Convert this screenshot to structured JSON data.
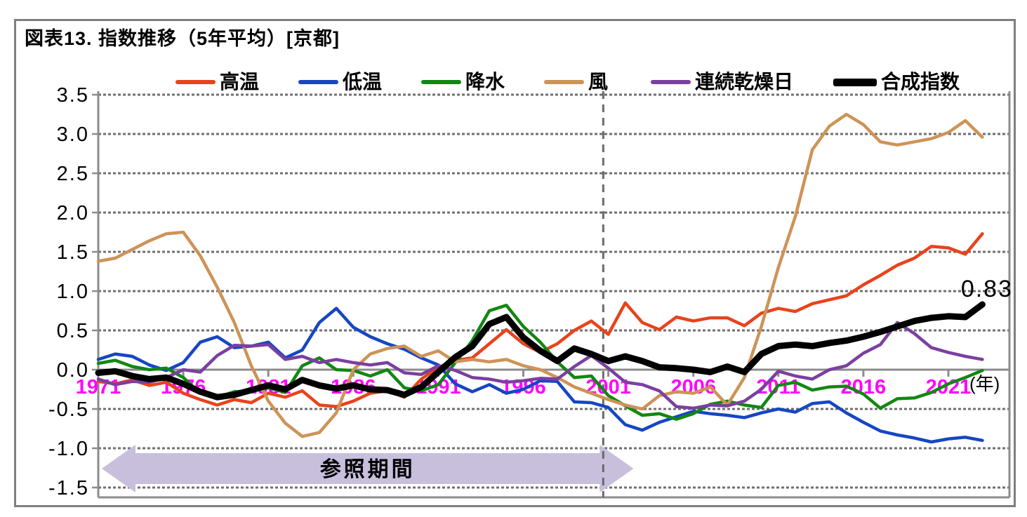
{
  "title": "図表13. 指数推移（5年平均）[京都]",
  "axis": {
    "unit_label": "(年)",
    "y_tick_labels": [
      "3.5",
      "3.0",
      "2.5",
      "2.0",
      "1.5",
      "1.0",
      "0.5",
      "0.0",
      "-0.5",
      "-1.0",
      "-1.5"
    ],
    "x_tick_years": [
      1971,
      1976,
      1981,
      1986,
      1991,
      1996,
      2001,
      2006,
      2011,
      2016,
      2021
    ],
    "x_tick_color": "#FF00FF"
  },
  "annotation": {
    "text": "0.83"
  },
  "reference_band": {
    "label": "参照期間",
    "fill_color": "#C8BFDD"
  },
  "chart_data": {
    "type": "line",
    "title": "図表13. 指数推移（5年平均）[京都]",
    "xlabel": "年",
    "ylabel": "",
    "ylim": [
      -1.5,
      3.5
    ],
    "xlim": [
      1971,
      2023
    ],
    "grid": "dotted horizontal at every 0.5",
    "legend_position": "top",
    "dashed_vline_year": 2000.7,
    "reference_period": {
      "label": "参照期間",
      "start_year": 1971,
      "end_year": 2000
    },
    "end_label": {
      "series": "合成指数",
      "text": "0.83",
      "value": 0.83,
      "year": 2023
    },
    "x": [
      1971,
      1972,
      1973,
      1974,
      1975,
      1976,
      1977,
      1978,
      1979,
      1980,
      1981,
      1982,
      1983,
      1984,
      1985,
      1986,
      1987,
      1988,
      1989,
      1990,
      1991,
      1992,
      1993,
      1994,
      1995,
      1996,
      1997,
      1998,
      1999,
      2000,
      2001,
      2002,
      2003,
      2004,
      2005,
      2006,
      2007,
      2008,
      2009,
      2010,
      2011,
      2012,
      2013,
      2014,
      2015,
      2016,
      2017,
      2018,
      2019,
      2020,
      2021,
      2022,
      2023
    ],
    "series": [
      {
        "name": "高温",
        "color": "#E8431C",
        "line_width": 4.5,
        "values": [
          -0.15,
          -0.18,
          -0.13,
          -0.2,
          -0.16,
          -0.3,
          -0.38,
          -0.45,
          -0.38,
          -0.42,
          -0.3,
          -0.35,
          -0.27,
          -0.45,
          -0.47,
          -0.4,
          -0.3,
          -0.27,
          -0.35,
          -0.12,
          0.03,
          0.12,
          0.15,
          0.33,
          0.51,
          0.33,
          0.22,
          0.33,
          0.5,
          0.62,
          0.45,
          0.85,
          0.6,
          0.51,
          0.67,
          0.62,
          0.66,
          0.66,
          0.56,
          0.72,
          0.78,
          0.74,
          0.84,
          0.89,
          0.94,
          1.08,
          1.2,
          1.33,
          1.42,
          1.57,
          1.55,
          1.47,
          1.73
        ]
      },
      {
        "name": "低温",
        "color": "#1646C4",
        "line_width": 4.5,
        "values": [
          0.13,
          0.2,
          0.17,
          0.06,
          -0.01,
          0.09,
          0.35,
          0.42,
          0.28,
          0.3,
          0.35,
          0.15,
          0.25,
          0.6,
          0.78,
          0.54,
          0.42,
          0.33,
          0.26,
          0.15,
          0.06,
          -0.18,
          -0.28,
          -0.19,
          -0.3,
          -0.25,
          -0.14,
          -0.15,
          -0.41,
          -0.42,
          -0.48,
          -0.7,
          -0.77,
          -0.67,
          -0.6,
          -0.53,
          -0.56,
          -0.58,
          -0.61,
          -0.55,
          -0.5,
          -0.54,
          -0.43,
          -0.41,
          -0.55,
          -0.67,
          -0.78,
          -0.83,
          -0.87,
          -0.92,
          -0.88,
          -0.86,
          -0.9
        ]
      },
      {
        "name": "降水",
        "color": "#128712",
        "line_width": 4.5,
        "values": [
          0.08,
          0.12,
          0.04,
          0.0,
          0.02,
          -0.1,
          -0.3,
          -0.35,
          -0.28,
          -0.27,
          -0.23,
          -0.29,
          0.05,
          0.15,
          0.0,
          -0.01,
          -0.08,
          0.0,
          -0.23,
          -0.27,
          -0.19,
          0.09,
          0.37,
          0.75,
          0.82,
          0.55,
          0.35,
          0.1,
          -0.1,
          -0.08,
          -0.33,
          -0.46,
          -0.58,
          -0.56,
          -0.63,
          -0.56,
          -0.44,
          -0.4,
          -0.45,
          -0.48,
          -0.2,
          -0.16,
          -0.26,
          -0.22,
          -0.21,
          -0.31,
          -0.49,
          -0.37,
          -0.36,
          -0.29,
          -0.18,
          -0.1,
          -0.01
        ]
      },
      {
        "name": "風",
        "color": "#CE9357",
        "line_width": 4.5,
        "values": [
          1.38,
          1.42,
          1.53,
          1.64,
          1.73,
          1.75,
          1.45,
          1.05,
          0.6,
          0.05,
          -0.4,
          -0.68,
          -0.85,
          -0.8,
          -0.55,
          0.0,
          0.2,
          0.27,
          0.3,
          0.17,
          0.24,
          0.1,
          0.13,
          0.1,
          0.13,
          0.05,
          0.0,
          -0.1,
          -0.22,
          -0.3,
          -0.38,
          -0.45,
          -0.5,
          -0.33,
          -0.28,
          -0.3,
          -0.22,
          -0.45,
          -0.1,
          0.55,
          1.3,
          1.95,
          2.8,
          3.1,
          3.25,
          3.12,
          2.9,
          2.86,
          2.9,
          2.94,
          3.02,
          3.17,
          2.96
        ]
      },
      {
        "name": "連続乾燥日",
        "color": "#7B3FA0",
        "line_width": 4.5,
        "values": [
          -0.12,
          -0.19,
          -0.15,
          -0.16,
          -0.1,
          0.0,
          -0.03,
          0.18,
          0.31,
          0.3,
          0.32,
          0.13,
          0.17,
          0.09,
          0.13,
          0.09,
          0.06,
          0.09,
          -0.04,
          -0.06,
          0.05,
          -0.01,
          -0.1,
          -0.12,
          -0.16,
          -0.14,
          -0.11,
          -0.12,
          0.04,
          0.18,
          0.02,
          -0.16,
          -0.19,
          -0.27,
          -0.47,
          -0.49,
          -0.45,
          -0.46,
          -0.4,
          -0.25,
          -0.02,
          -0.08,
          -0.12,
          0.0,
          0.05,
          0.21,
          0.32,
          0.6,
          0.46,
          0.28,
          0.22,
          0.17,
          0.13
        ]
      },
      {
        "name": "合成指数",
        "color": "#000000",
        "line_width": 9,
        "values": [
          -0.04,
          -0.02,
          -0.08,
          -0.12,
          -0.1,
          -0.18,
          -0.28,
          -0.35,
          -0.32,
          -0.26,
          -0.2,
          -0.25,
          -0.13,
          -0.2,
          -0.24,
          -0.2,
          -0.25,
          -0.26,
          -0.32,
          -0.22,
          -0.03,
          0.16,
          0.3,
          0.58,
          0.67,
          0.41,
          0.24,
          0.11,
          0.27,
          0.2,
          0.11,
          0.17,
          0.11,
          0.03,
          0.02,
          0.0,
          -0.03,
          0.04,
          -0.03,
          0.2,
          0.3,
          0.32,
          0.3,
          0.34,
          0.37,
          0.42,
          0.48,
          0.55,
          0.62,
          0.66,
          0.68,
          0.67,
          0.83
        ]
      }
    ]
  }
}
